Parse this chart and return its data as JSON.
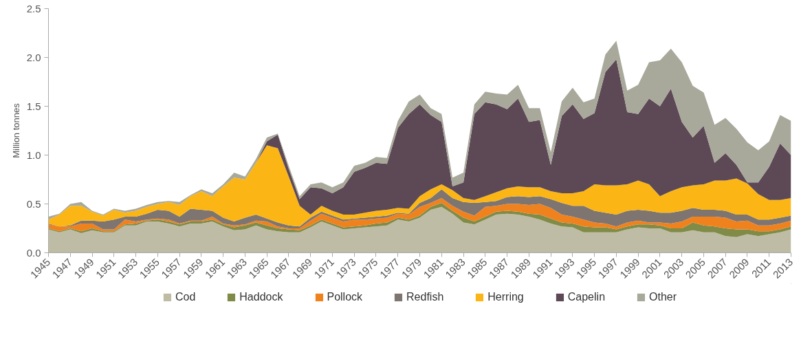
{
  "chart_data": {
    "type": "area",
    "stacked": true,
    "ylabel": "Million tonnes",
    "x": [
      1945,
      1946,
      1947,
      1948,
      1949,
      1950,
      1951,
      1952,
      1953,
      1954,
      1955,
      1956,
      1957,
      1958,
      1959,
      1960,
      1961,
      1962,
      1963,
      1964,
      1965,
      1966,
      1967,
      1968,
      1969,
      1970,
      1971,
      1972,
      1973,
      1974,
      1975,
      1976,
      1977,
      1978,
      1979,
      1980,
      1981,
      1982,
      1983,
      1984,
      1985,
      1986,
      1987,
      1988,
      1989,
      1990,
      1991,
      1992,
      1993,
      1994,
      1995,
      1996,
      1997,
      1998,
      1999,
      2000,
      2001,
      2002,
      2003,
      2004,
      2005,
      2006,
      2007,
      2008,
      2009,
      2010,
      2011,
      2012,
      2013
    ],
    "xlim": [
      1945,
      2013
    ],
    "xticks": [
      1945,
      1947,
      1949,
      1951,
      1953,
      1955,
      1957,
      1959,
      1961,
      1963,
      1965,
      1967,
      1969,
      1971,
      1973,
      1975,
      1977,
      1979,
      1981,
      1983,
      1985,
      1987,
      1989,
      1991,
      1993,
      1995,
      1997,
      1999,
      2001,
      2003,
      2005,
      2007,
      2009,
      2011,
      2013
    ],
    "ylim": [
      0,
      2.5
    ],
    "yticks": [
      {
        "value": 0,
        "label": "0.0"
      },
      0.5,
      {
        "value": 1,
        "label": "1.0"
      },
      1.5,
      {
        "value": 2,
        "label": "2.0"
      },
      2.5
    ],
    "grid": false,
    "legend": "bottom",
    "series": [
      {
        "name": "Cod",
        "color": "#bfbca5",
        "values": [
          0.24,
          0.21,
          0.24,
          0.2,
          0.23,
          0.21,
          0.21,
          0.28,
          0.28,
          0.32,
          0.32,
          0.3,
          0.27,
          0.3,
          0.3,
          0.32,
          0.27,
          0.23,
          0.24,
          0.28,
          0.24,
          0.22,
          0.21,
          0.21,
          0.26,
          0.32,
          0.28,
          0.24,
          0.25,
          0.26,
          0.27,
          0.28,
          0.34,
          0.32,
          0.36,
          0.44,
          0.47,
          0.4,
          0.31,
          0.29,
          0.34,
          0.39,
          0.4,
          0.39,
          0.37,
          0.34,
          0.3,
          0.27,
          0.26,
          0.21,
          0.21,
          0.21,
          0.21,
          0.24,
          0.26,
          0.25,
          0.25,
          0.21,
          0.21,
          0.23,
          0.21,
          0.21,
          0.17,
          0.16,
          0.19,
          0.17,
          0.19,
          0.21,
          0.24
        ]
      },
      {
        "name": "Haddock",
        "color": "#7f8b47",
        "values": [
          0.01,
          0.01,
          0.01,
          0.02,
          0.02,
          0.01,
          0.01,
          0.01,
          0.02,
          0.01,
          0.02,
          0.02,
          0.02,
          0.02,
          0.02,
          0.02,
          0.02,
          0.03,
          0.04,
          0.03,
          0.04,
          0.03,
          0.03,
          0.02,
          0.02,
          0.02,
          0.02,
          0.02,
          0.02,
          0.02,
          0.03,
          0.03,
          0.02,
          0.02,
          0.02,
          0.03,
          0.04,
          0.03,
          0.05,
          0.03,
          0.03,
          0.03,
          0.03,
          0.03,
          0.03,
          0.05,
          0.05,
          0.04,
          0.04,
          0.06,
          0.05,
          0.05,
          0.03,
          0.03,
          0.03,
          0.04,
          0.03,
          0.04,
          0.04,
          0.08,
          0.07,
          0.06,
          0.08,
          0.08,
          0.05,
          0.05,
          0.03,
          0.03,
          0.03
        ]
      },
      {
        "name": "Pollock",
        "color": "#f0821e",
        "values": [
          0.04,
          0.05,
          0.02,
          0.08,
          0.05,
          0.02,
          0.02,
          0.05,
          0.02,
          0.01,
          0.01,
          0.02,
          0.01,
          0.01,
          0.01,
          0.03,
          0.01,
          0.02,
          0.01,
          0.02,
          0.04,
          0.02,
          0.01,
          0.02,
          0.05,
          0.06,
          0.06,
          0.06,
          0.07,
          0.06,
          0.05,
          0.05,
          0.04,
          0.05,
          0.09,
          0.04,
          0.05,
          0.05,
          0.06,
          0.06,
          0.1,
          0.06,
          0.07,
          0.08,
          0.09,
          0.11,
          0.11,
          0.08,
          0.07,
          0.07,
          0.05,
          0.04,
          0.03,
          0.04,
          0.04,
          0.02,
          0.03,
          0.05,
          0.07,
          0.06,
          0.09,
          0.1,
          0.11,
          0.08,
          0.09,
          0.06,
          0.06,
          0.06,
          0.06
        ]
      },
      {
        "name": "Redfish",
        "color": "#7e7571",
        "values": [
          0.01,
          0,
          0.01,
          0.03,
          0.03,
          0.08,
          0.1,
          0.03,
          0.05,
          0.06,
          0.09,
          0.09,
          0.07,
          0.12,
          0.11,
          0.06,
          0.06,
          0.04,
          0.07,
          0.06,
          0.03,
          0.04,
          0.03,
          0.02,
          0.03,
          0.02,
          0.02,
          0.02,
          0.01,
          0.02,
          0.02,
          0.02,
          0.01,
          0.01,
          0.04,
          0.05,
          0.09,
          0.08,
          0.1,
          0.13,
          0.05,
          0.05,
          0.07,
          0.08,
          0.08,
          0.08,
          0.09,
          0.12,
          0.11,
          0.14,
          0.12,
          0.11,
          0.12,
          0.12,
          0.11,
          0.12,
          0.1,
          0.11,
          0.11,
          0.09,
          0.07,
          0.07,
          0.07,
          0.07,
          0.06,
          0.06,
          0.06,
          0.06,
          0.05
        ]
      },
      {
        "name": "Herring",
        "color": "#fbb615",
        "values": [
          0.04,
          0.12,
          0.2,
          0.15,
          0.09,
          0.06,
          0.1,
          0.04,
          0.06,
          0.07,
          0.06,
          0.09,
          0.12,
          0.13,
          0.19,
          0.15,
          0.32,
          0.45,
          0.39,
          0.53,
          0.75,
          0.76,
          0.5,
          0.21,
          0.03,
          0.06,
          0.05,
          0.05,
          0.04,
          0.05,
          0.06,
          0.06,
          0.05,
          0.05,
          0.07,
          0.09,
          0.05,
          0.08,
          0.04,
          0.03,
          0.06,
          0.09,
          0.09,
          0.1,
          0.1,
          0.09,
          0.08,
          0.1,
          0.13,
          0.15,
          0.27,
          0.28,
          0.3,
          0.27,
          0.3,
          0.27,
          0.17,
          0.22,
          0.24,
          0.23,
          0.26,
          0.3,
          0.31,
          0.37,
          0.32,
          0.26,
          0.2,
          0.18,
          0.18
        ]
      },
      {
        "name": "Capelin",
        "color": "#5d4955",
        "values": [
          0,
          0,
          0,
          0,
          0,
          0,
          0,
          0,
          0,
          0,
          0,
          0,
          0,
          0,
          0,
          0,
          0,
          0,
          0,
          0,
          0.04,
          0.14,
          0.08,
          0.07,
          0.28,
          0.18,
          0.18,
          0.28,
          0.44,
          0.46,
          0.49,
          0.47,
          0.82,
          0.97,
          0.94,
          0.76,
          0.64,
          0.04,
          0.16,
          0.88,
          0.96,
          0.9,
          0.81,
          0.9,
          0.67,
          0.69,
          0.27,
          0.79,
          0.91,
          0.74,
          0.73,
          1.16,
          1.29,
          0.74,
          0.68,
          0.88,
          0.92,
          1.05,
          0.67,
          0.49,
          0.6,
          0.18,
          0.28,
          0.14,
          0.01,
          0.12,
          0.34,
          0.58,
          0.44
        ]
      },
      {
        "name": "Other",
        "color": "#a8a89b",
        "values": [
          0.03,
          0.01,
          0.02,
          0.04,
          0.01,
          0.01,
          0.01,
          0.02,
          0.02,
          0.02,
          0.02,
          0.01,
          0.03,
          0.01,
          0.02,
          0.03,
          0.02,
          0.05,
          0.03,
          0.04,
          0.04,
          0.01,
          0.03,
          0.03,
          0.03,
          0.06,
          0.06,
          0.05,
          0.06,
          0.05,
          0.06,
          0.06,
          0.07,
          0.13,
          0.1,
          0.07,
          0.08,
          0.09,
          0.1,
          0.1,
          0.11,
          0.11,
          0.15,
          0.14,
          0.14,
          0.12,
          0.13,
          0.15,
          0.17,
          0.17,
          0.15,
          0.18,
          0.19,
          0.22,
          0.3,
          0.37,
          0.47,
          0.41,
          0.61,
          0.53,
          0.34,
          0.39,
          0.36,
          0.37,
          0.41,
          0.33,
          0.26,
          0.29,
          0.35
        ]
      }
    ]
  }
}
